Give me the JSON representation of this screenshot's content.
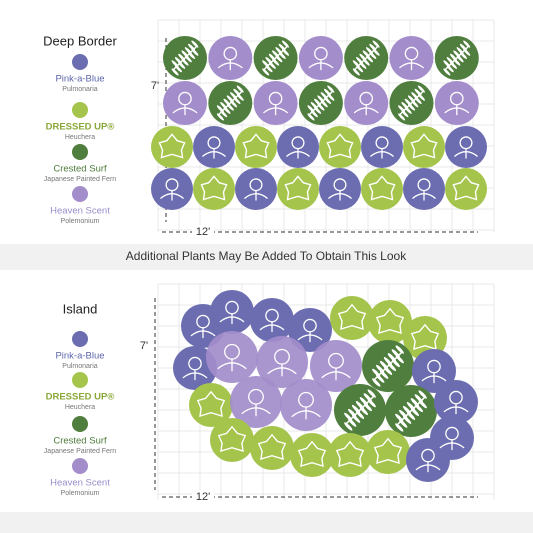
{
  "panels": [
    {
      "title": "Deep Border",
      "height_label": "7'",
      "width_label": "12'",
      "legend": [
        {
          "name": "Pink-a-Blue",
          "subtitle": "Pulmonaria"
        },
        {
          "name": "DRESSED UP®",
          "subtitle": "Heuchera"
        },
        {
          "name": "Crested Surf",
          "subtitle": "Japanese Painted Fern"
        },
        {
          "name": "Heaven Scent",
          "subtitle": "Polemonium"
        }
      ]
    },
    {
      "title": "Island",
      "height_label": "7'",
      "width_label": "12'",
      "legend": [
        {
          "name": "Pink-a-Blue",
          "subtitle": "Pulmonaria"
        },
        {
          "name": "DRESSED UP®",
          "subtitle": "Heuchera"
        },
        {
          "name": "Crested Surf",
          "subtitle": "Japanese Painted Fern"
        },
        {
          "name": "Heaven Scent",
          "subtitle": "Polemonium"
        }
      ]
    }
  ],
  "note": "Additional Plants May Be Added To Obtain This Look"
}
